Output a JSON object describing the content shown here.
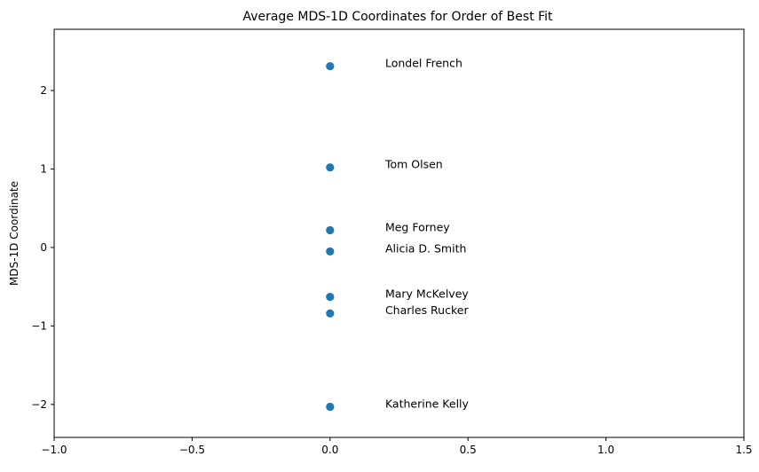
{
  "chart_data": {
    "type": "scatter",
    "title": "Average MDS-1D Coordinates for Order of Best Fit",
    "xlabel": "",
    "ylabel": "MDS-1D Coordinate",
    "xlim": [
      -1.0,
      1.5
    ],
    "ylim": [
      -2.42,
      2.78
    ],
    "x_ticks": [
      -1.0,
      -0.5,
      0.0,
      0.5,
      1.0,
      1.5
    ],
    "x_tick_labels": [
      "−1.0",
      "−0.5",
      "0.0",
      "0.5",
      "1.0",
      "1.5"
    ],
    "y_ticks": [
      -2,
      -1,
      0,
      1,
      2
    ],
    "y_tick_labels": [
      "−2",
      "−1",
      "0",
      "1",
      "2"
    ],
    "grid": false,
    "legend": "none",
    "point_color": "#1f77b4",
    "label_x_offset": 0.2,
    "points": [
      {
        "x": 0.0,
        "y": 2.31,
        "label": "Londel French"
      },
      {
        "x": 0.0,
        "y": 1.02,
        "label": "Tom Olsen"
      },
      {
        "x": 0.0,
        "y": 0.22,
        "label": "Meg Forney"
      },
      {
        "x": 0.0,
        "y": -0.05,
        "label": "Alicia D. Smith"
      },
      {
        "x": 0.0,
        "y": -0.63,
        "label": "Mary McKelvey"
      },
      {
        "x": 0.0,
        "y": -0.84,
        "label": "Charles Rucker"
      },
      {
        "x": 0.0,
        "y": -2.03,
        "label": "Katherine Kelly"
      }
    ]
  }
}
